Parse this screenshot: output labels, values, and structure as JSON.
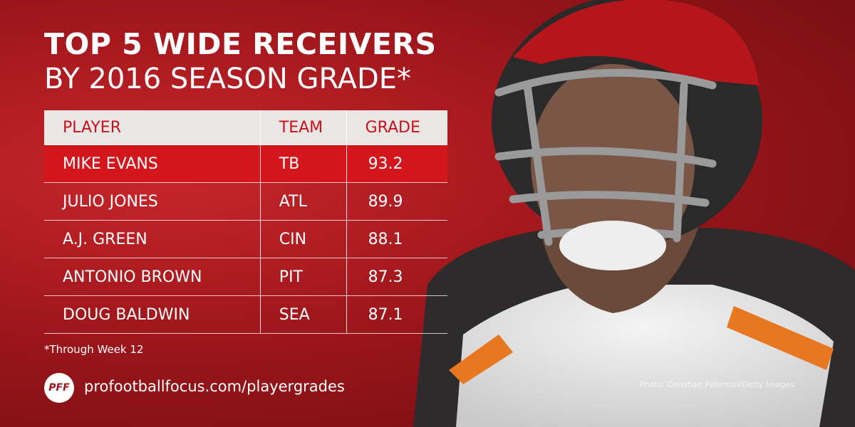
{
  "title": "TOP 5 WIDE RECEIVERS",
  "subtitle": "BY 2016 SEASON GRADE*",
  "table": {
    "columns": [
      "PLAYER",
      "TEAM",
      "GRADE"
    ],
    "rows": [
      [
        "MIKE EVANS",
        "TB",
        93.2
      ],
      [
        "JULIO JONES",
        "ATL",
        89.9
      ],
      [
        "A.J. GREEN",
        "CIN",
        88.1
      ],
      [
        "ANTONIO BROWN",
        "PIT",
        87.3
      ],
      [
        "DOUG BALDWIN",
        "SEA",
        87.1
      ]
    ]
  },
  "footnote": "*Through Week 12",
  "logo": "PFF",
  "url": "profootballfocus.com/playergrades",
  "credit": "Photo: Christian Peterson/Getty Images"
}
